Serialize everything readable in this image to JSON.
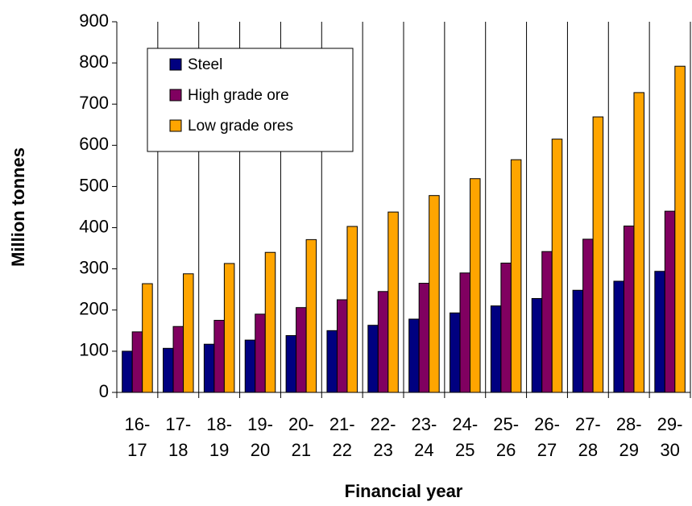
{
  "chart_data": {
    "type": "bar",
    "x_label": "Financial year",
    "y_label": "Million tonnes",
    "categories": [
      [
        "16-",
        "17"
      ],
      [
        "17-",
        "18"
      ],
      [
        "18-",
        "19"
      ],
      [
        "19-",
        "20"
      ],
      [
        "20-",
        "21"
      ],
      [
        "21-",
        "22"
      ],
      [
        "22-",
        "23"
      ],
      [
        "23-",
        "24"
      ],
      [
        "24-",
        "25"
      ],
      [
        "25-",
        "26"
      ],
      [
        "26-",
        "27"
      ],
      [
        "27-",
        "28"
      ],
      [
        "28-",
        "29"
      ],
      [
        "29-",
        "30"
      ]
    ],
    "series": [
      {
        "name": "Steel",
        "color": "#000080",
        "values": [
          100,
          107,
          117,
          127,
          138,
          150,
          163,
          178,
          193,
          210,
          228,
          248,
          270,
          294
        ]
      },
      {
        "name": "High grade ore",
        "color": "#800060",
        "values": [
          147,
          160,
          175,
          190,
          206,
          225,
          245,
          265,
          290,
          314,
          342,
          372,
          404,
          440
        ]
      },
      {
        "name": "Low grade ores",
        "color": "#ffa500",
        "values": [
          264,
          288,
          313,
          340,
          371,
          403,
          438,
          478,
          519,
          565,
          615,
          669,
          728,
          792
        ]
      }
    ],
    "ylim": [
      0,
      900
    ],
    "yticks": [
      0,
      100,
      200,
      300,
      400,
      500,
      600,
      700,
      800,
      900
    ],
    "legend": "upper left"
  }
}
